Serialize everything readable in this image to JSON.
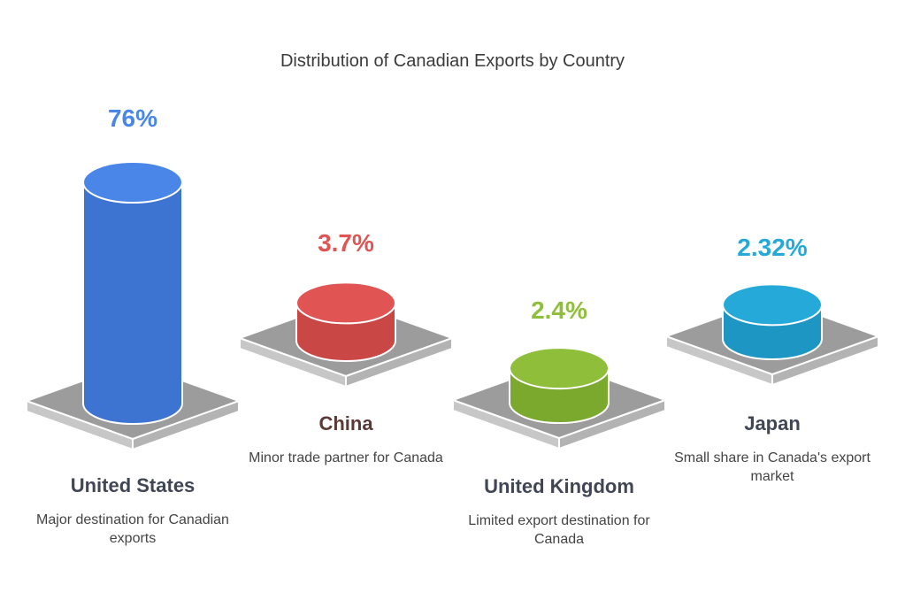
{
  "chart_data": {
    "type": "bar",
    "title": "Distribution of Canadian Exports by Country",
    "categories": [
      "United States",
      "China",
      "United Kingdom",
      "Japan"
    ],
    "values": [
      76,
      3.7,
      2.4,
      2.32
    ],
    "value_labels": [
      "76%",
      "3.7%",
      "2.4%",
      "2.32%"
    ],
    "descriptions": [
      "Major destination for Canadian exports",
      "Minor trade partner for Canada",
      "Limited export destination for Canada",
      "Small share in Canada's export market"
    ],
    "colors": [
      "#4a86e8",
      "#e05553",
      "#8fbf3a",
      "#25a9d9"
    ],
    "side_colors": [
      "#3d74d2",
      "#c94745",
      "#7aa92d",
      "#1d96c4"
    ],
    "platform_color": "#9c9c9c"
  },
  "styles": {
    "name_color_dark": "#404654",
    "name_color_china": "#5b3a36"
  }
}
